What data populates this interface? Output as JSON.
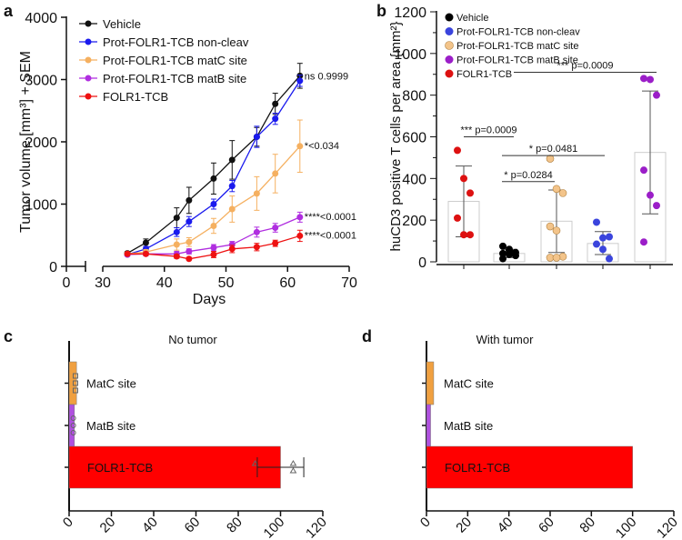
{
  "panel_labels": [
    "a",
    "b",
    "c",
    "d"
  ],
  "chart_data": [
    {
      "type": "line",
      "panel": "a",
      "ylabel": "Tumor volume [mm³] + SEM",
      "xlabel": "Days",
      "ylim": [
        0,
        4000
      ],
      "yticks": [
        "0",
        "1000",
        "2000",
        "3000",
        "4000"
      ],
      "xticks": [
        "0",
        "30",
        "40",
        "50",
        "60",
        "70"
      ],
      "x_axis_break": [
        0,
        30
      ],
      "legend": "top-left",
      "x": [
        34,
        37,
        42,
        44,
        48,
        51,
        55,
        58,
        62
      ],
      "series": [
        {
          "name": "Vehicle",
          "color": "#111111",
          "values": [
            210,
            380,
            780,
            1060,
            1410,
            1710,
            2080,
            2610,
            3060
          ],
          "sem": [
            30,
            60,
            160,
            210,
            250,
            310,
            150,
            170,
            200
          ],
          "annotation": "ns 0.9999"
        },
        {
          "name": "Prot-FOLR1-TCB non-cleav",
          "color": "#1a1aee",
          "values": [
            190,
            280,
            550,
            720,
            1000,
            1290,
            2080,
            2370,
            2980
          ],
          "sem": [
            20,
            40,
            70,
            80,
            80,
            90,
            170,
            90,
            90
          ],
          "annotation": ""
        },
        {
          "name": "Prot-FOLR1-TCB matC site",
          "color": "#f5b060",
          "values": [
            200,
            230,
            350,
            390,
            650,
            920,
            1170,
            1490,
            1930
          ],
          "sem": [
            30,
            40,
            90,
            70,
            120,
            210,
            270,
            310,
            420
          ],
          "annotation": "*<0.034"
        },
        {
          "name": "Prot-FOLR1-TCB matB site",
          "color": "#b02ee0",
          "values": [
            190,
            200,
            200,
            240,
            300,
            350,
            550,
            620,
            790
          ],
          "sem": [
            20,
            30,
            40,
            40,
            50,
            50,
            80,
            70,
            80
          ],
          "annotation": "****<0.0001"
        },
        {
          "name": "FOLR1-TCB",
          "color": "#ee1111",
          "values": [
            200,
            200,
            160,
            120,
            190,
            280,
            310,
            370,
            490
          ],
          "sem": [
            20,
            20,
            30,
            20,
            50,
            60,
            60,
            50,
            90
          ],
          "annotation": "****<0.0001"
        }
      ]
    },
    {
      "type": "bar",
      "panel": "b",
      "ylabel": "huCD3 positive T cells per area {mm²}",
      "ylim": [
        0,
        1200
      ],
      "yticks": [
        "0",
        "200",
        "400",
        "600",
        "800",
        "1000",
        "1200"
      ],
      "legend": "top-left",
      "legend_entries": [
        {
          "name": "Vehicle",
          "color": "#000000"
        },
        {
          "name": "Prot-FOLR1-TCB non-cleav",
          "color": "#3a44dd"
        },
        {
          "name": "Prot-FOLR1-TCB matC site",
          "color": "#f3c48a"
        },
        {
          "name": "Prot-FOLR1-TCB matB site",
          "color": "#9b1ec8"
        },
        {
          "name": "FOLR1-TCB",
          "color": "#dd1111"
        }
      ],
      "groups": [
        {
          "name": "FOLR1-TCB",
          "color": "#dd1111",
          "mean": 290,
          "sd": [
            120,
            460
          ],
          "points": [
            535,
            400,
            330,
            210,
            130,
            130
          ]
        },
        {
          "name": "Vehicle",
          "color": "#000000",
          "mean": 40,
          "sd": [
            20,
            60
          ],
          "points": [
            75,
            55,
            45,
            40,
            35,
            30,
            15,
            60
          ]
        },
        {
          "name": "Prot-FOLR1-TCB matC site",
          "color": "#f3c48a",
          "mean": 195,
          "sd": [
            45,
            345
          ],
          "points": [
            495,
            350,
            330,
            170,
            150,
            25,
            20,
            20
          ]
        },
        {
          "name": "Prot-FOLR1-TCB non-cleav",
          "color": "#3a44dd",
          "mean": 88,
          "sd": [
            35,
            145
          ],
          "points": [
            190,
            115,
            120,
            85,
            60,
            15
          ]
        },
        {
          "name": "Prot-FOLR1-TCB matB site",
          "color": "#9b1ec8",
          "mean": 525,
          "sd": [
            230,
            820
          ],
          "points": [
            880,
            875,
            800,
            440,
            320,
            270,
            95
          ]
        }
      ],
      "comparisons": [
        {
          "from": 0,
          "to": 1,
          "y": 600,
          "label": "*** p=0.0009"
        },
        {
          "from": 1,
          "to": 3,
          "y": 510,
          "label": "* p=0.0481"
        },
        {
          "from": 1,
          "to": 2,
          "y": 385,
          "label": "* p=0.0284"
        },
        {
          "from": 0.1,
          "to": 4,
          "y": 910,
          "label": "*** p=0.0009"
        }
      ]
    },
    {
      "type": "bar",
      "panel": "c",
      "orientation": "horizontal",
      "title": "No tumor",
      "xlim": [
        0,
        120
      ],
      "xticks": [
        "0",
        "20",
        "40",
        "60",
        "80",
        "100",
        "120"
      ],
      "categories": [
        "MatC site",
        "MatB site",
        "FOLR1-TCB"
      ],
      "colors": [
        "#f0a040",
        "#b050e0",
        "#ff0000"
      ],
      "values": [
        3.5,
        2.5,
        100
      ],
      "error": [
        null,
        null,
        [
          89,
          111
        ]
      ],
      "points": [
        [
          3,
          3,
          3
        ],
        [
          2,
          2,
          2
        ],
        [
          88,
          106,
          106
        ]
      ]
    },
    {
      "type": "bar",
      "panel": "d",
      "orientation": "horizontal",
      "title": "With tumor",
      "xlim": [
        0,
        120
      ],
      "xticks": [
        "0",
        "20",
        "40",
        "60",
        "80",
        "100",
        "120"
      ],
      "categories": [
        "MatC site",
        "MatB site",
        "FOLR1-TCB"
      ],
      "colors": [
        "#f0a040",
        "#b050e0",
        "#ff0000"
      ],
      "values": [
        3.5,
        2,
        100
      ]
    }
  ]
}
